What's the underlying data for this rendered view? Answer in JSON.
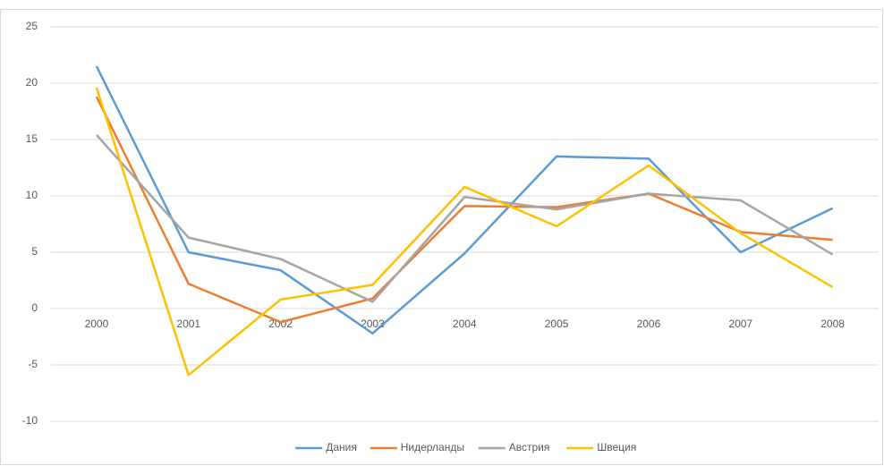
{
  "chart_data": {
    "type": "line",
    "categories": [
      "2000",
      "2001",
      "2002",
      "2003",
      "2004",
      "2005",
      "2006",
      "2007",
      "2008"
    ],
    "series": [
      {
        "name": "Дания",
        "color": "#5b9bd5",
        "values": [
          21.5,
          5.0,
          3.4,
          -2.2,
          4.9,
          13.5,
          13.3,
          5.0,
          8.9
        ]
      },
      {
        "name": "Нидерланды",
        "color": "#ed7d31",
        "values": [
          18.8,
          2.2,
          -1.2,
          0.9,
          9.1,
          9.0,
          10.2,
          6.8,
          6.1
        ]
      },
      {
        "name": "Австрия",
        "color": "#a5a5a5",
        "values": [
          15.4,
          6.3,
          4.4,
          0.6,
          9.9,
          8.8,
          10.2,
          9.6,
          4.8
        ]
      },
      {
        "name": "Швеция",
        "color": "#ffc000",
        "values": [
          19.6,
          -5.9,
          0.8,
          2.1,
          10.8,
          7.3,
          12.7,
          6.7,
          1.9
        ]
      }
    ],
    "ylim": [
      -10,
      25
    ],
    "yticks": [
      -10,
      -5,
      0,
      5,
      10,
      15,
      20,
      25
    ],
    "grid": true,
    "legend": "bottom"
  }
}
